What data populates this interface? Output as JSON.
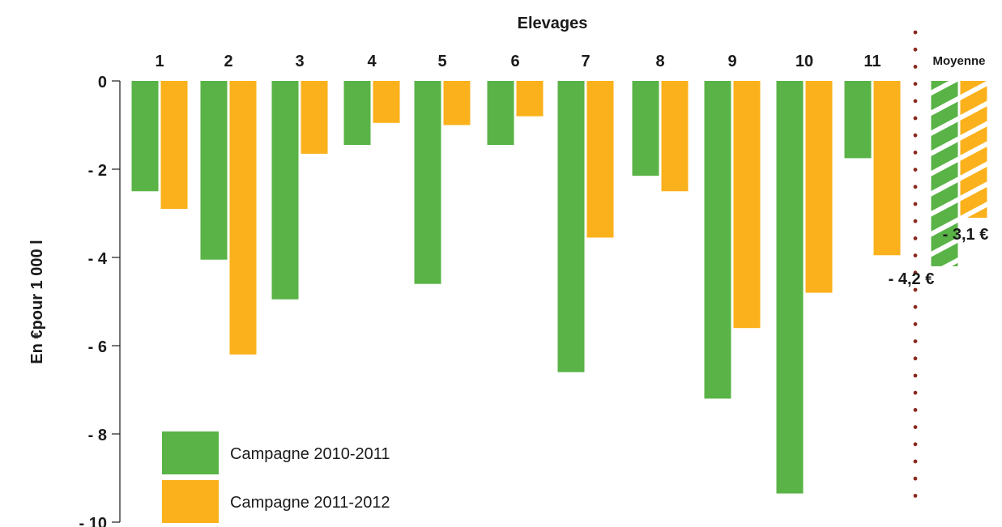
{
  "chart_data": {
    "type": "bar",
    "title": "Elevages",
    "ylabel": "En €pour 1 000 l",
    "ylim": [
      -10,
      0
    ],
    "yticks": [
      0,
      -2,
      -4,
      -6,
      -8,
      -10
    ],
    "ytick_labels": [
      "0",
      "- 2",
      "- 4",
      "- 6",
      "- 8",
      "- 10"
    ],
    "categories": [
      "1",
      "2",
      "3",
      "4",
      "5",
      "6",
      "7",
      "8",
      "9",
      "10",
      "11",
      "Moyenne"
    ],
    "series": [
      {
        "name": "Campagne 2010-2011",
        "color": "#59b346",
        "values": [
          -2.5,
          -4.05,
          -4.95,
          -1.45,
          -4.6,
          -1.45,
          -6.6,
          -2.15,
          -7.2,
          -9.35,
          -1.75,
          -4.2
        ]
      },
      {
        "name": "Campagne 2011-2012",
        "color": "#fbb11b",
        "values": [
          -2.9,
          -6.2,
          -1.65,
          -0.95,
          -1.0,
          -0.8,
          -3.55,
          -2.5,
          -5.6,
          -4.8,
          -3.95,
          -3.1
        ]
      }
    ],
    "average_labels": [
      "- 4,2 €",
      "- 3,1 €"
    ],
    "grid": false,
    "legend_position": "bottom-left",
    "average_separator_color": "#8b2a1f"
  }
}
